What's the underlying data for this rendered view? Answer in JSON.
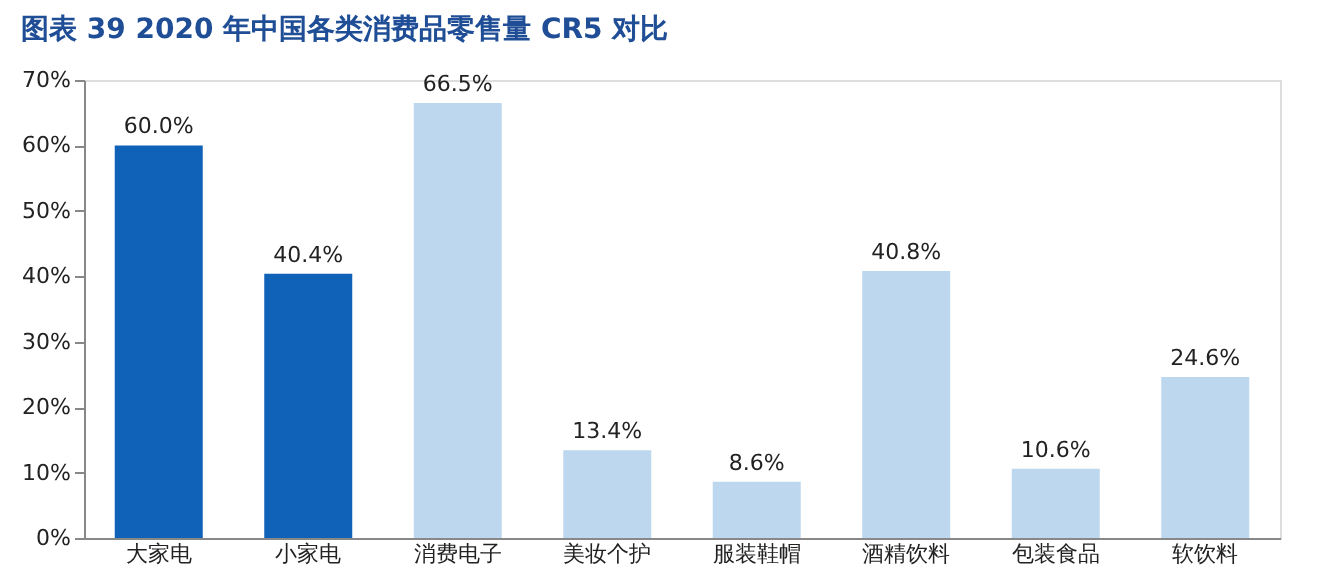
{
  "chart_data": {
    "type": "bar",
    "title": "图表 39   2020 年中国各类消费品零售量 CR5 对比",
    "categories": [
      "大家电",
      "小家电",
      "消费电子",
      "美妆个护",
      "服装鞋帽",
      "酒精饮料",
      "包装食品",
      "软饮料"
    ],
    "values": [
      60.0,
      40.4,
      66.5,
      13.4,
      8.6,
      40.8,
      10.6,
      24.6
    ],
    "colors": [
      "#0f62b8",
      "#0f62b8",
      "#bdd7ee",
      "#bdd7ee",
      "#bdd7ee",
      "#bdd7ee",
      "#bdd7ee",
      "#bdd7ee"
    ],
    "value_labels": [
      "60.0%",
      "40.4%",
      "66.5%",
      "13.4%",
      "8.6%",
      "40.8%",
      "10.6%",
      "24.6%"
    ],
    "ylim": [
      0,
      70
    ],
    "yticks": [
      {
        "value": 0,
        "label": "0%"
      },
      {
        "value": 10,
        "label": "10%"
      },
      {
        "value": 20,
        "label": "20%"
      },
      {
        "value": 30,
        "label": "30%"
      },
      {
        "value": 40,
        "label": "40%"
      },
      {
        "value": 50,
        "label": "50%"
      },
      {
        "value": 60,
        "label": "60%"
      },
      {
        "value": 70,
        "label": "70%"
      }
    ],
    "grid": false
  }
}
